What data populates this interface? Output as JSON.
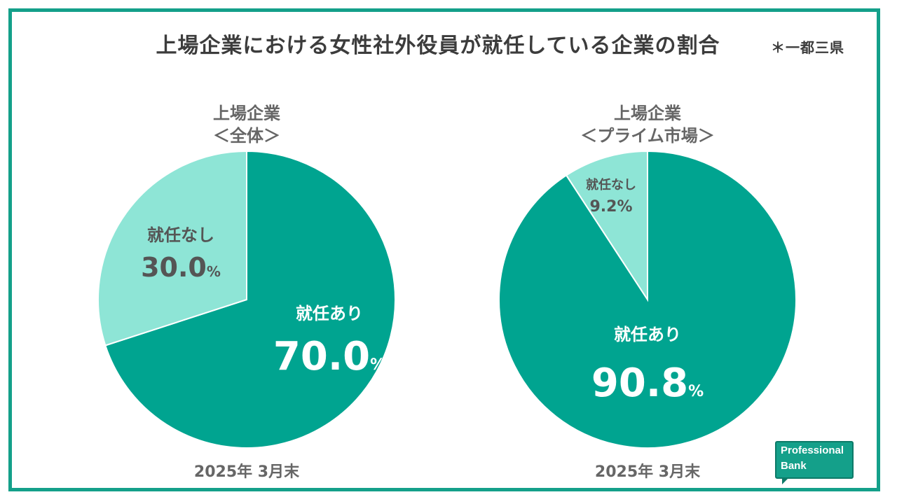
{
  "title": "上場企業における女性社外役員が就任している企業の割合",
  "note": "＊一都三県",
  "colors": {
    "frame": "#14a08a",
    "dark": "#00a490",
    "light": "#8ee5d6"
  },
  "logo": {
    "line1": "Professional",
    "line2": "Bank"
  },
  "chart_data": [
    {
      "type": "pie",
      "title_line1": "上場企業",
      "title_line2": "＜全体＞",
      "date": "2025年 3月末",
      "slices": [
        {
          "label": "就任あり",
          "value": 70.0,
          "value_text": "70.0",
          "unit": "%"
        },
        {
          "label": "就任なし",
          "value": 30.0,
          "value_text": "30.0",
          "unit": "%"
        }
      ]
    },
    {
      "type": "pie",
      "title_line1": "上場企業",
      "title_line2": "＜プライム市場＞",
      "date": "2025年 3月末",
      "slices": [
        {
          "label": "就任あり",
          "value": 90.8,
          "value_text": "90.8",
          "unit": "%"
        },
        {
          "label": "就任なし",
          "value": 9.2,
          "value_text": "9.2",
          "unit": "%"
        }
      ]
    }
  ]
}
